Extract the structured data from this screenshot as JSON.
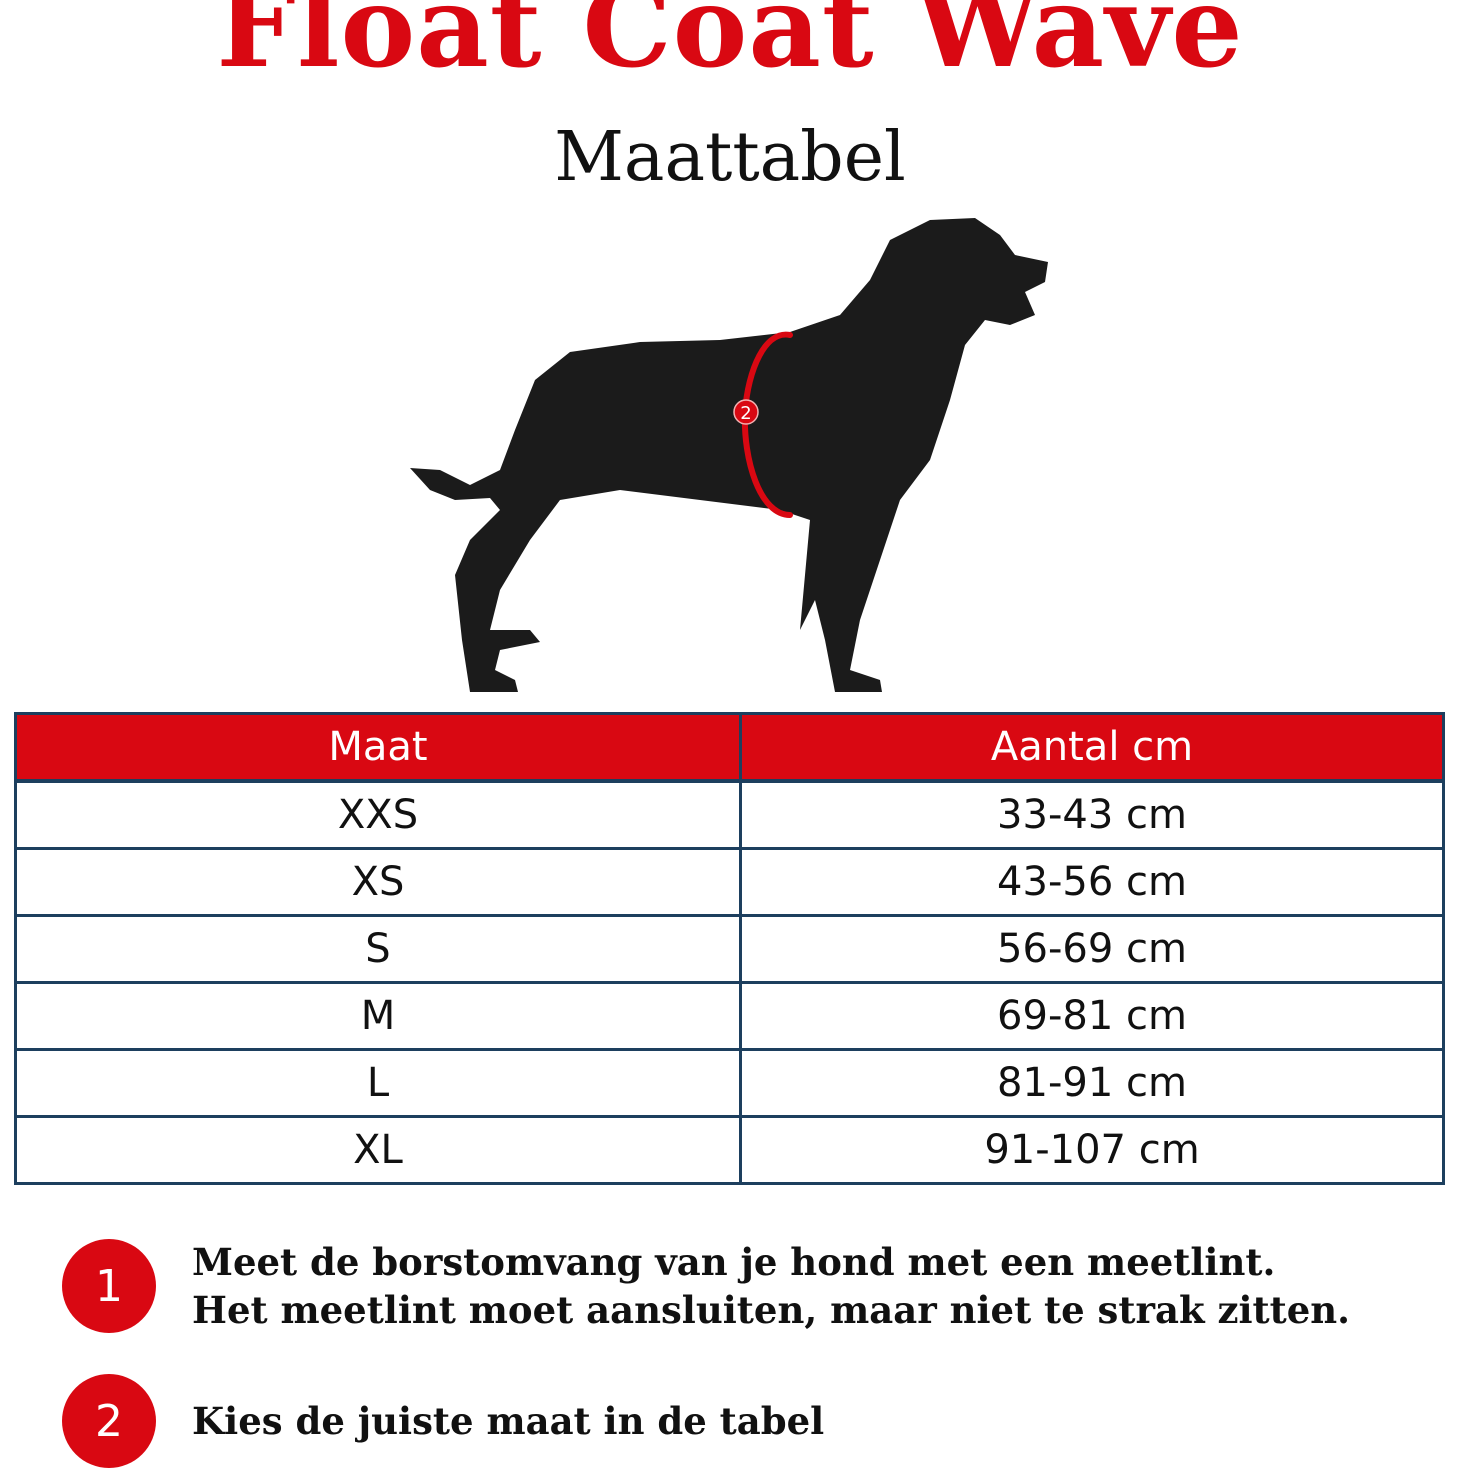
{
  "header": {
    "title": "Float Coat Wave",
    "subtitle": "Maattabel"
  },
  "illustration": {
    "marker_label": "2",
    "accent_color": "#d90812",
    "silhouette_color": "#1b1b1b"
  },
  "table": {
    "headers": [
      "Maat",
      "Aantal cm"
    ],
    "rows": [
      [
        "XXS",
        "33-43 cm"
      ],
      [
        "XS",
        "43-56 cm"
      ],
      [
        "S",
        "56-69 cm"
      ],
      [
        "M",
        "69-81 cm"
      ],
      [
        "L",
        "81-91 cm"
      ],
      [
        "XL",
        "91-107 cm"
      ]
    ],
    "header_color": "#d90812",
    "border_color": "#1d3f5e"
  },
  "steps": [
    {
      "number": "1",
      "text": "Meet de borstomvang van je hond met een meetlint. Het meetlint moet aansluiten, maar niet te strak zitten."
    },
    {
      "number": "2",
      "text": "Kies de juiste maat in de tabel"
    }
  ]
}
